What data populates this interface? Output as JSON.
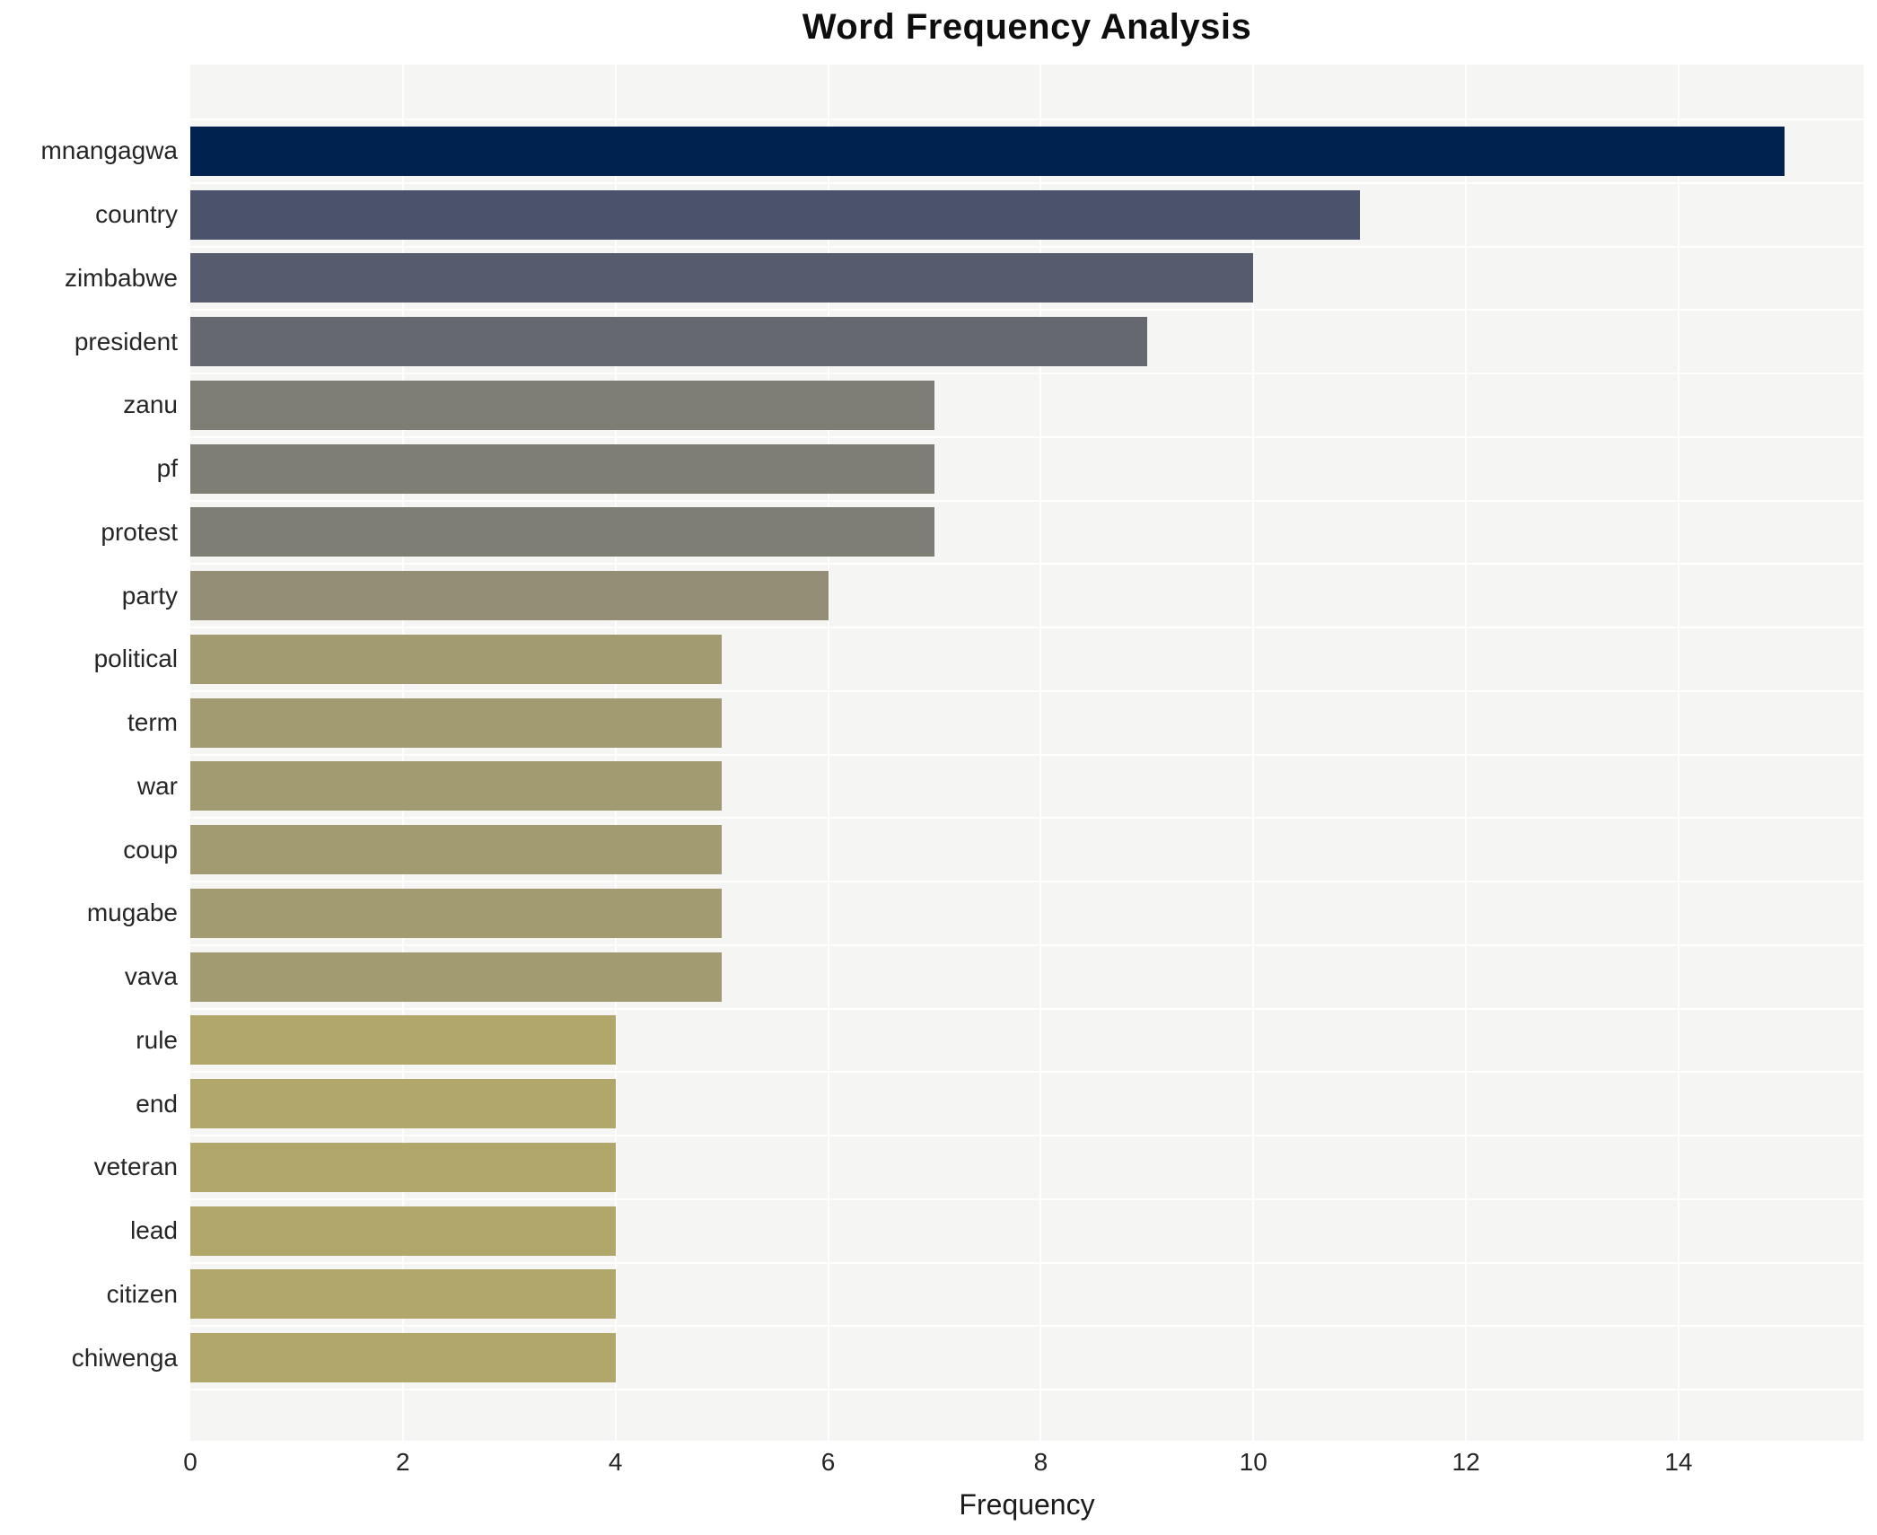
{
  "chart_data": {
    "type": "bar",
    "orientation": "horizontal",
    "title": "Word Frequency Analysis",
    "xlabel": "Frequency",
    "ylabel": "",
    "categories": [
      "mnangagwa",
      "country",
      "zimbabwe",
      "president",
      "zanu",
      "pf",
      "protest",
      "party",
      "political",
      "term",
      "war",
      "coup",
      "mugabe",
      "vava",
      "rule",
      "end",
      "veteran",
      "lead",
      "citizen",
      "chiwenga"
    ],
    "values": [
      15,
      11,
      10,
      9,
      7,
      7,
      7,
      6,
      5,
      5,
      5,
      5,
      5,
      5,
      4,
      4,
      4,
      4,
      4,
      4
    ],
    "bar_colors": [
      "#00224e",
      "#4a526c",
      "#565c6e",
      "#65686e",
      "#7f7e74",
      "#7f7e74",
      "#7f7e74",
      "#938e75",
      "#a29a70",
      "#a29a70",
      "#a29a70",
      "#a29a70",
      "#a29a70",
      "#a29a70",
      "#b2a76a",
      "#b2a76a",
      "#b2a76a",
      "#b2a76a",
      "#b2a76a",
      "#b2a76a"
    ],
    "x_ticks": [
      0,
      2,
      4,
      6,
      8,
      10,
      12,
      14
    ],
    "xlim": [
      0,
      15.74
    ],
    "grid": true,
    "legend": false,
    "colors": {
      "plot_background": "#f5f5f4",
      "grid_line": "#ffffff",
      "tick_text": "#262626",
      "title_text": "#0e0e0e"
    }
  }
}
